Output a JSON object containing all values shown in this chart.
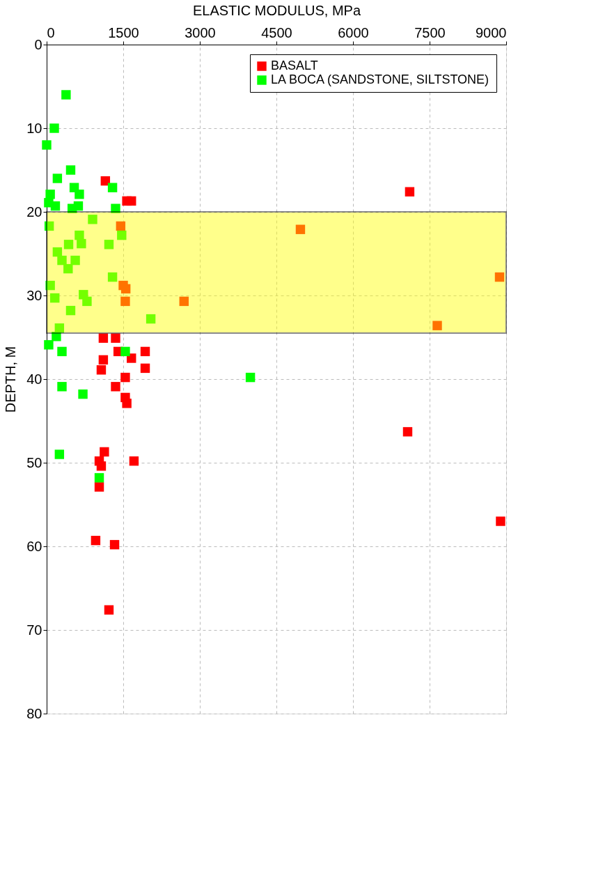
{
  "chart_data": {
    "type": "scatter",
    "xlabel": "ELASTIC MODULUS, MPa",
    "ylabel": "DEPTH, M",
    "xlim": [
      0,
      9000
    ],
    "xticks": [
      0,
      1500,
      3000,
      4500,
      6000,
      7500,
      9000
    ],
    "ylim": [
      80,
      0
    ],
    "yticks": [
      0,
      10,
      20,
      30,
      40,
      50,
      60,
      70,
      80
    ],
    "grid": true,
    "legend": "top right",
    "marker": "square",
    "bands": [
      {
        "axis": "y",
        "from": 20,
        "to": 34.5,
        "label": null,
        "color": "#ffff00"
      }
    ],
    "series": [
      {
        "name": "BASALT",
        "color": "#ff0000",
        "x": [
          1150,
          1570,
          1660,
          7110,
          1450,
          4970,
          1500,
          1550,
          8870,
          1540,
          2690,
          7650,
          1110,
          1350,
          1400,
          1660,
          1930,
          1110,
          1930,
          1070,
          1540,
          1350,
          1540,
          1570,
          7070,
          1130,
          1030,
          1710,
          1070,
          1030,
          960,
          1330,
          8890,
          1220
        ],
        "values": [
          16.3,
          18.7,
          18.7,
          17.6,
          21.7,
          22.1,
          28.8,
          29.2,
          27.8,
          30.7,
          30.7,
          33.6,
          35.1,
          35.1,
          36.7,
          37.5,
          36.7,
          37.7,
          38.7,
          38.9,
          39.8,
          40.9,
          42.2,
          42.9,
          46.3,
          48.7,
          49.8,
          49.8,
          50.4,
          52.9,
          59.3,
          59.8,
          57.0,
          67.6
        ]
      },
      {
        "name": "LA BOCA (SANDSTONE, SILTSTONE)",
        "color": "#00ff00",
        "x": [
          380,
          150,
          0,
          470,
          210,
          1290,
          540,
          640,
          70,
          40,
          170,
          500,
          620,
          1350,
          50,
          900,
          1470,
          640,
          680,
          430,
          1220,
          210,
          300,
          560,
          420,
          1290,
          70,
          720,
          790,
          160,
          470,
          2040,
          250,
          190,
          40,
          300,
          1540,
          3990,
          300,
          710,
          250,
          1030
        ],
        "values": [
          6,
          10,
          12,
          15,
          16,
          17.1,
          17.1,
          17.9,
          17.9,
          18.9,
          19.3,
          19.6,
          19.3,
          19.6,
          21.7,
          20.9,
          22.8,
          22.8,
          23.8,
          23.9,
          23.9,
          24.8,
          25.8,
          25.8,
          26.8,
          27.8,
          28.8,
          29.9,
          30.7,
          30.3,
          31.8,
          32.8,
          33.9,
          34.9,
          35.9,
          36.7,
          36.7,
          39.8,
          40.9,
          41.8,
          49.0,
          51.8
        ]
      }
    ]
  }
}
